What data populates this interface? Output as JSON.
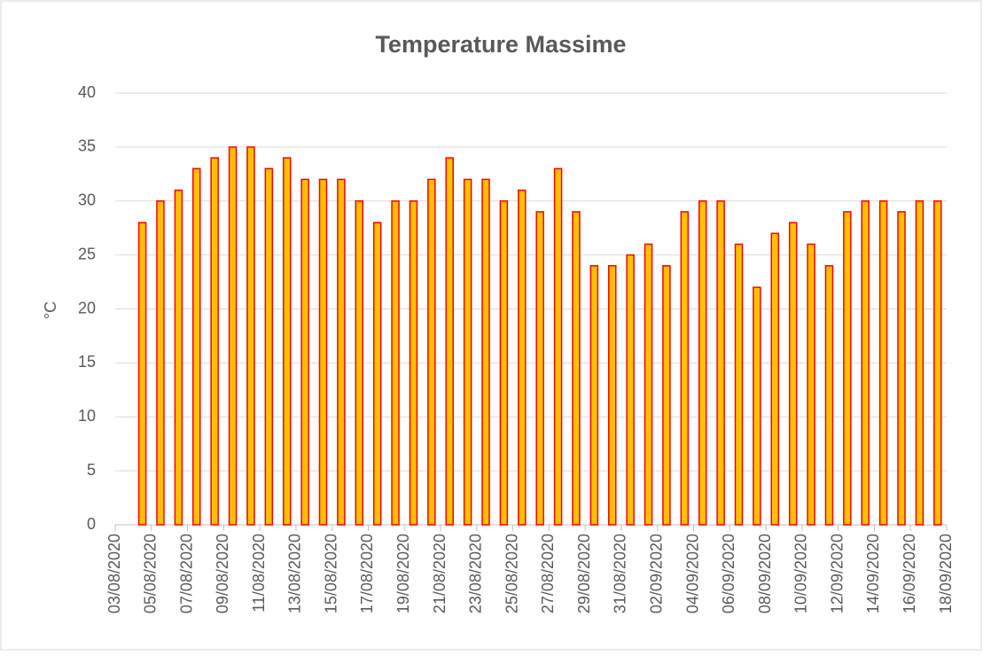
{
  "chart_data": {
    "type": "bar",
    "title": "Temperature Massime",
    "y_label": "°C",
    "x": [
      "04/08/2020",
      "05/08/2020",
      "06/08/2020",
      "07/08/2020",
      "08/08/2020",
      "09/08/2020",
      "10/08/2020",
      "11/08/2020",
      "12/08/2020",
      "13/08/2020",
      "14/08/2020",
      "15/08/2020",
      "16/08/2020",
      "17/08/2020",
      "18/08/2020",
      "19/08/2020",
      "20/08/2020",
      "21/08/2020",
      "22/08/2020",
      "23/08/2020",
      "24/08/2020",
      "25/08/2020",
      "26/08/2020",
      "27/08/2020",
      "28/08/2020",
      "29/08/2020",
      "30/08/2020",
      "31/08/2020",
      "01/09/2020",
      "02/09/2020",
      "03/09/2020",
      "04/09/2020",
      "05/09/2020",
      "06/09/2020",
      "07/09/2020",
      "08/09/2020",
      "09/09/2020",
      "10/09/2020",
      "11/09/2020",
      "12/09/2020",
      "13/09/2020",
      "14/09/2020",
      "15/09/2020",
      "16/09/2020",
      "17/09/2020"
    ],
    "values": [
      28,
      30,
      31,
      33,
      34,
      35,
      35,
      33,
      34,
      32,
      32,
      32,
      30,
      28,
      30,
      30,
      32,
      34,
      32,
      32,
      30,
      31,
      29,
      33,
      29,
      24,
      24,
      25,
      26,
      24,
      29,
      30,
      30,
      26,
      22,
      27,
      28,
      26,
      24,
      29,
      30,
      30,
      29,
      30,
      30
    ],
    "color": "#ffc000",
    "edge_color": "#ff0000",
    "xlim": [
      "03/08/2020",
      "18/09/2020"
    ],
    "xticks": [
      "03/08/2020",
      "05/08/2020",
      "07/08/2020",
      "09/08/2020",
      "11/08/2020",
      "13/08/2020",
      "15/08/2020",
      "17/08/2020",
      "19/08/2020",
      "21/08/2020",
      "23/08/2020",
      "25/08/2020",
      "27/08/2020",
      "29/08/2020",
      "31/08/2020",
      "02/09/2020",
      "04/09/2020",
      "06/09/2020",
      "08/09/2020",
      "10/09/2020",
      "12/09/2020",
      "14/09/2020",
      "16/09/2020",
      "18/09/2020"
    ],
    "ylim": [
      0,
      40
    ],
    "yticks": [
      0,
      5,
      10,
      15,
      20,
      25,
      30,
      35,
      40
    ],
    "grid": true
  }
}
